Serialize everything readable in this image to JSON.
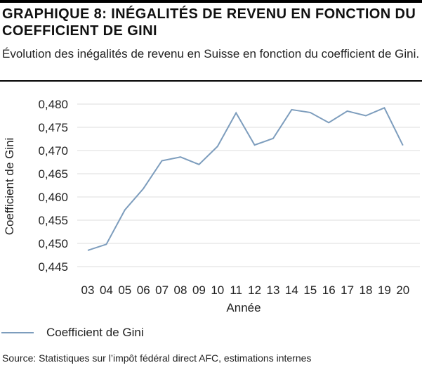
{
  "title": "GRAPHIQUE 8: INÉGALITÉS DE REVENU EN FONCTION DU COEFFICIENT DE GINI",
  "subtitle": "Évolution des inégalités de revenu en Suisse en fonction du coefficient de Gini.",
  "source": "Source: Statistiques sur l’impôt fédéral direct AFC, estimations internes",
  "colors": {
    "line": "#7d9dbd",
    "grid": "#dcdcdc",
    "rule": "#000000"
  },
  "chart_data": {
    "type": "line",
    "xlabel": "Année",
    "ylabel": "Coefficient de Gini",
    "categories": [
      "03",
      "04",
      "05",
      "06",
      "07",
      "08",
      "09",
      "10",
      "11",
      "12",
      "13",
      "14",
      "15",
      "16",
      "17",
      "18",
      "19",
      "20"
    ],
    "yticks": [
      "0,445",
      "0,450",
      "0,455",
      "0,460",
      "0,465",
      "0,470",
      "0,475",
      "0,480"
    ],
    "ylim": [
      0.445,
      0.481
    ],
    "grid": true,
    "legend_position": "bottom-left",
    "series": [
      {
        "name": "Coefficient de Gini",
        "values": [
          0.4485,
          0.4498,
          0.4572,
          0.4618,
          0.4678,
          0.4686,
          0.467,
          0.4709,
          0.4781,
          0.4712,
          0.4726,
          0.4788,
          0.4782,
          0.476,
          0.4785,
          0.4775,
          0.4792,
          0.4711
        ]
      }
    ]
  }
}
